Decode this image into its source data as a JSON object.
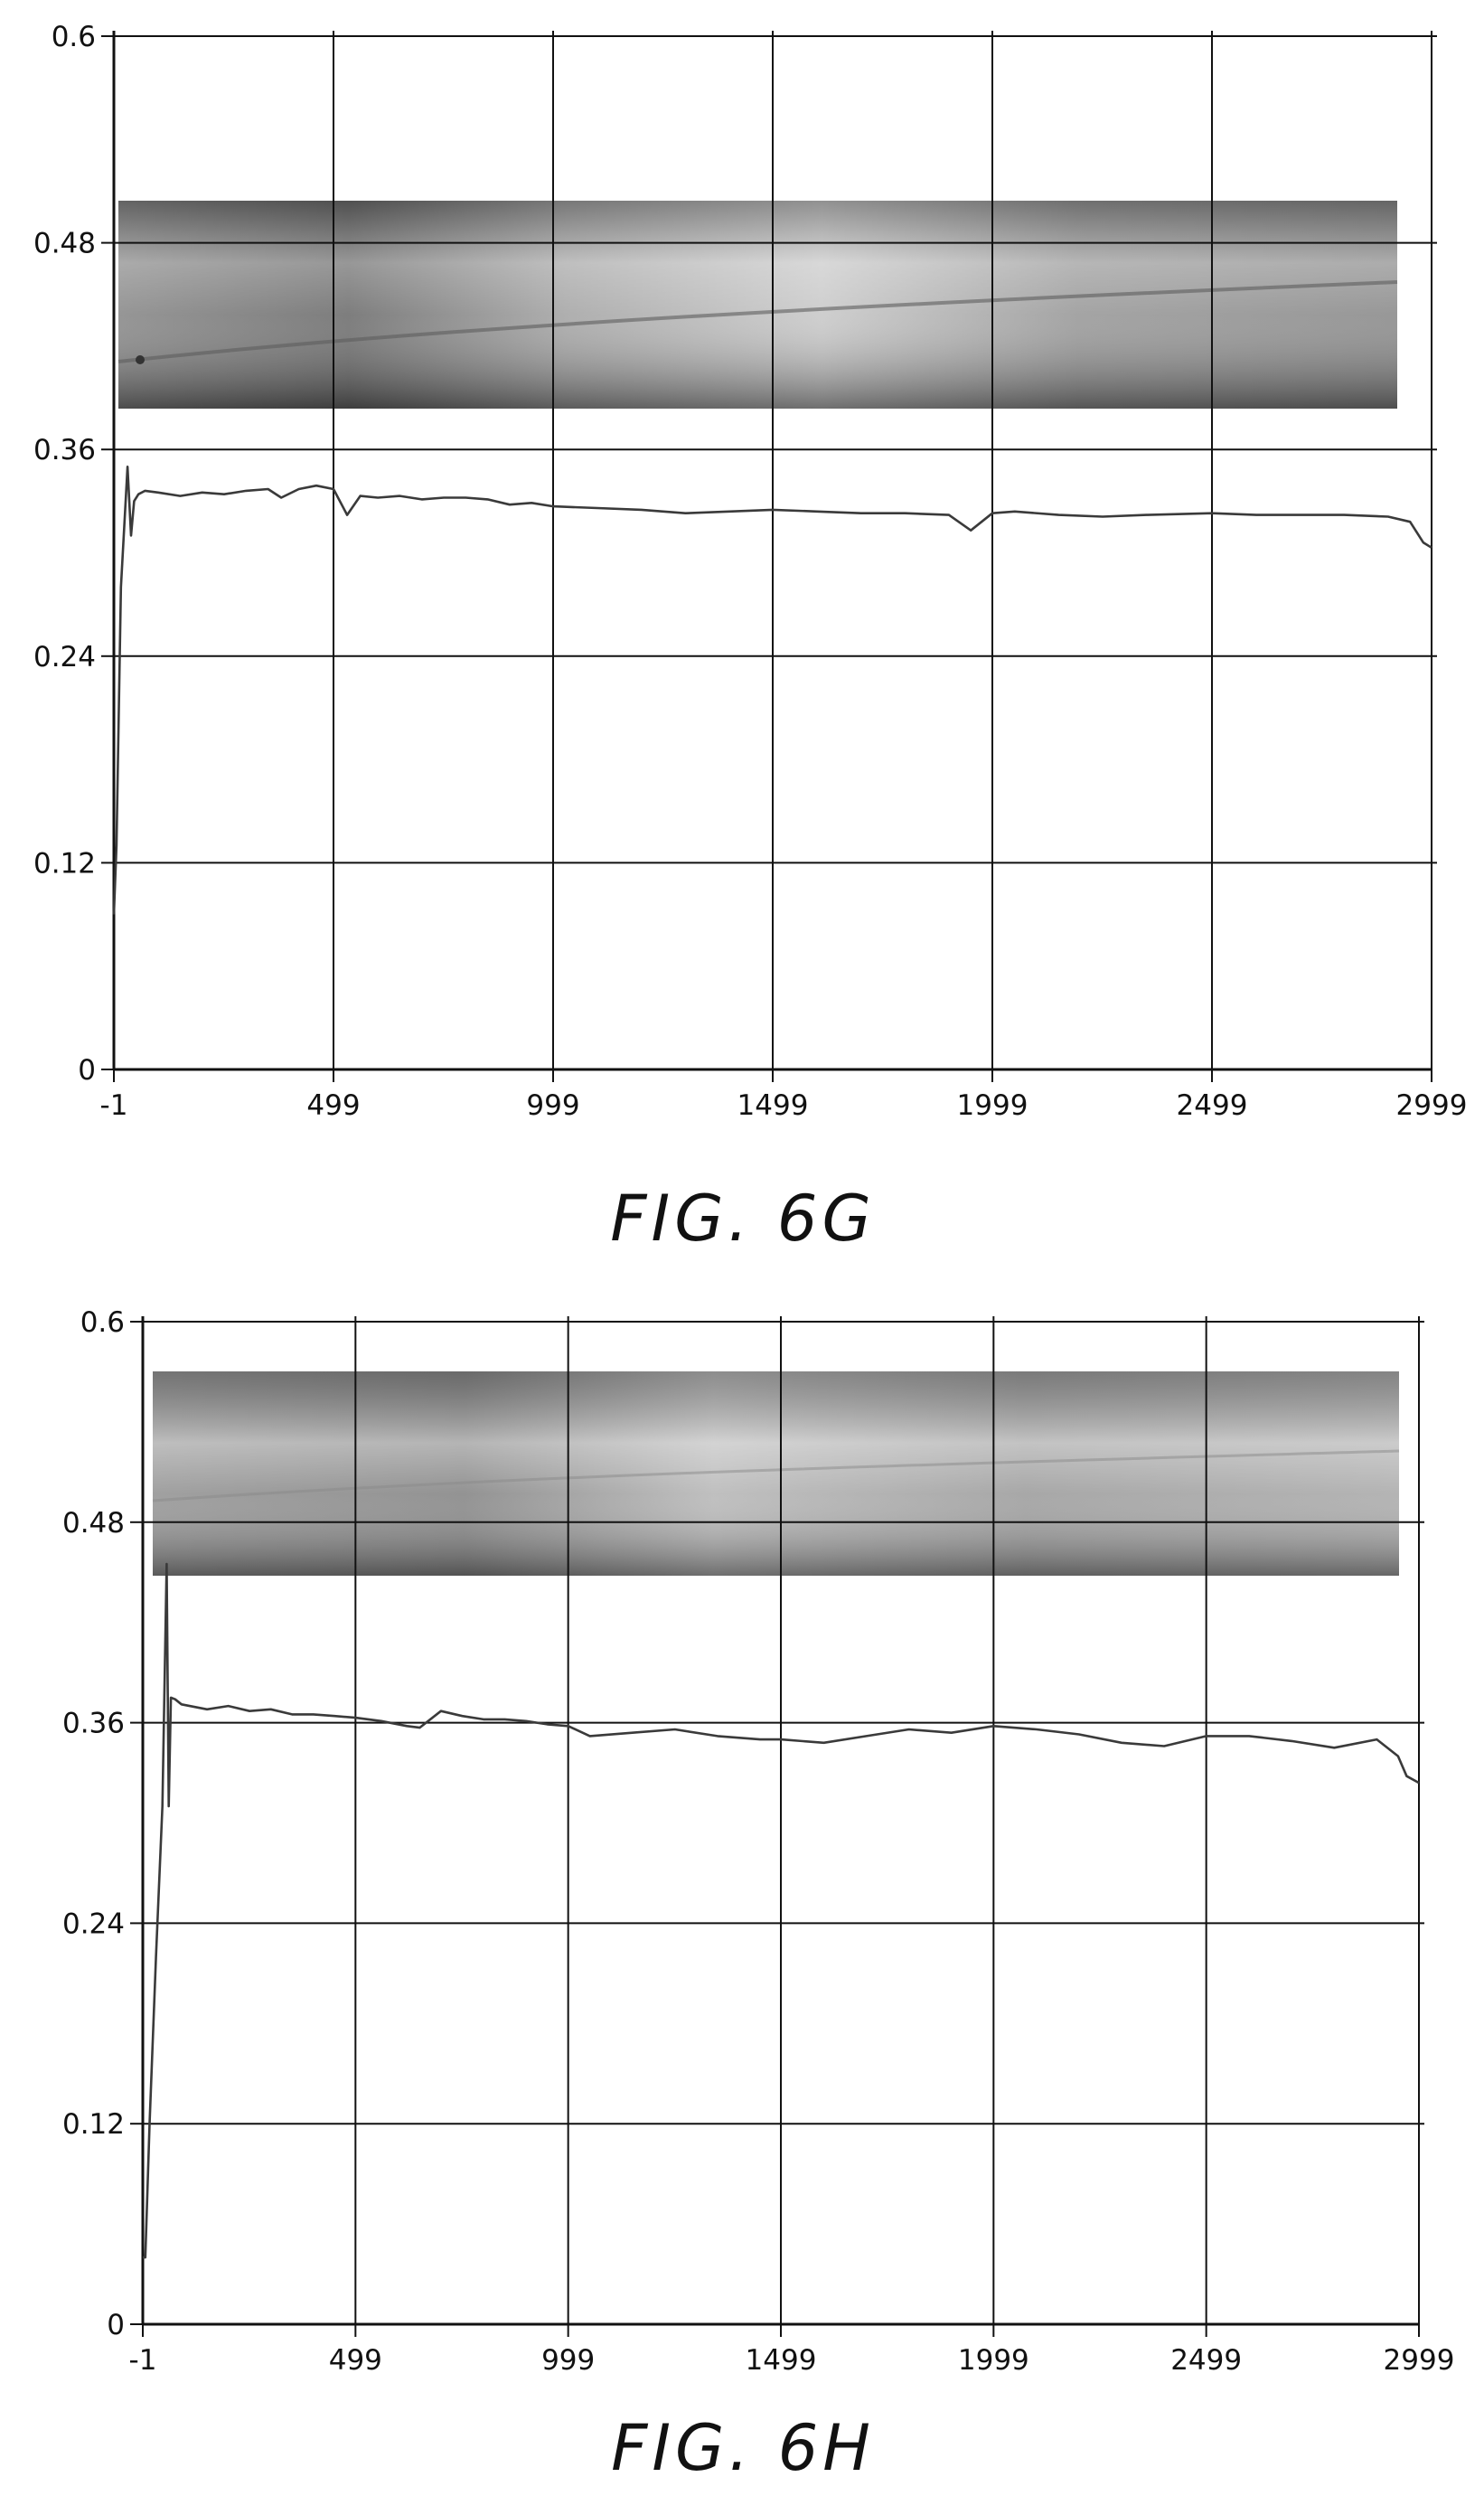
{
  "chart_data": [
    {
      "type": "line",
      "caption": "FIG. 6G",
      "x_ticks": [
        "-1",
        "499",
        "999",
        "1499",
        "1999",
        "2499",
        "2999"
      ],
      "y_ticks": [
        "0",
        "0.12",
        "0.24",
        "0.36",
        "0.48",
        "0.6"
      ],
      "xlim": [
        -1,
        2999
      ],
      "ylim": [
        0,
        0.6
      ],
      "grid": true,
      "inset_image": "photograph of specimen wear track",
      "series": [
        {
          "x": [
            -1,
            5,
            15,
            30,
            38,
            45,
            55,
            70,
            100,
            150,
            200,
            250,
            300,
            350,
            380,
            420,
            460,
            499,
            530,
            560,
            600,
            650,
            700,
            750,
            800,
            850,
            900,
            950,
            999,
            1100,
            1200,
            1300,
            1400,
            1499,
            1600,
            1700,
            1800,
            1900,
            1950,
            1999,
            2050,
            2150,
            2250,
            2350,
            2499,
            2600,
            2700,
            2800,
            2900,
            2950,
            2980,
            2999
          ],
          "y": [
            0.09,
            0.13,
            0.28,
            0.35,
            0.31,
            0.33,
            0.334,
            0.336,
            0.335,
            0.333,
            0.335,
            0.334,
            0.336,
            0.337,
            0.332,
            0.337,
            0.339,
            0.337,
            0.322,
            0.333,
            0.332,
            0.333,
            0.331,
            0.332,
            0.332,
            0.331,
            0.328,
            0.329,
            0.327,
            0.326,
            0.325,
            0.323,
            0.324,
            0.325,
            0.324,
            0.323,
            0.323,
            0.322,
            0.313,
            0.323,
            0.324,
            0.322,
            0.321,
            0.322,
            0.323,
            0.322,
            0.322,
            0.322,
            0.321,
            0.318,
            0.306,
            0.303
          ]
        }
      ]
    },
    {
      "type": "line",
      "caption": "FIG. 6H",
      "x_ticks": [
        "-1",
        "499",
        "999",
        "1499",
        "1999",
        "2499",
        "2999"
      ],
      "y_ticks": [
        "0",
        "0.12",
        "0.24",
        "0.36",
        "0.48",
        "0.6"
      ],
      "xlim": [
        -1,
        2999
      ],
      "ylim": [
        0,
        0.6
      ],
      "grid": true,
      "inset_image": "photograph of specimen wear track",
      "series": [
        {
          "x": [
            -1,
            5,
            15,
            30,
            45,
            55,
            60,
            65,
            75,
            90,
            150,
            200,
            250,
            300,
            350,
            400,
            450,
            499,
            560,
            620,
            650,
            700,
            750,
            800,
            850,
            900,
            950,
            999,
            1050,
            1150,
            1250,
            1350,
            1450,
            1499,
            1600,
            1700,
            1800,
            1900,
            1999,
            2100,
            2200,
            2300,
            2400,
            2499,
            2600,
            2700,
            2800,
            2900,
            2950,
            2970,
            2999
          ],
          "y": [
            0.04,
            0.04,
            0.12,
            0.22,
            0.31,
            0.455,
            0.31,
            0.375,
            0.374,
            0.371,
            0.368,
            0.37,
            0.367,
            0.368,
            0.365,
            0.365,
            0.364,
            0.363,
            0.361,
            0.358,
            0.357,
            0.367,
            0.364,
            0.362,
            0.362,
            0.361,
            0.359,
            0.358,
            0.352,
            0.354,
            0.356,
            0.352,
            0.35,
            0.35,
            0.348,
            0.352,
            0.356,
            0.354,
            0.358,
            0.356,
            0.353,
            0.348,
            0.346,
            0.352,
            0.352,
            0.349,
            0.345,
            0.35,
            0.34,
            0.328,
            0.324
          ]
        }
      ]
    }
  ]
}
